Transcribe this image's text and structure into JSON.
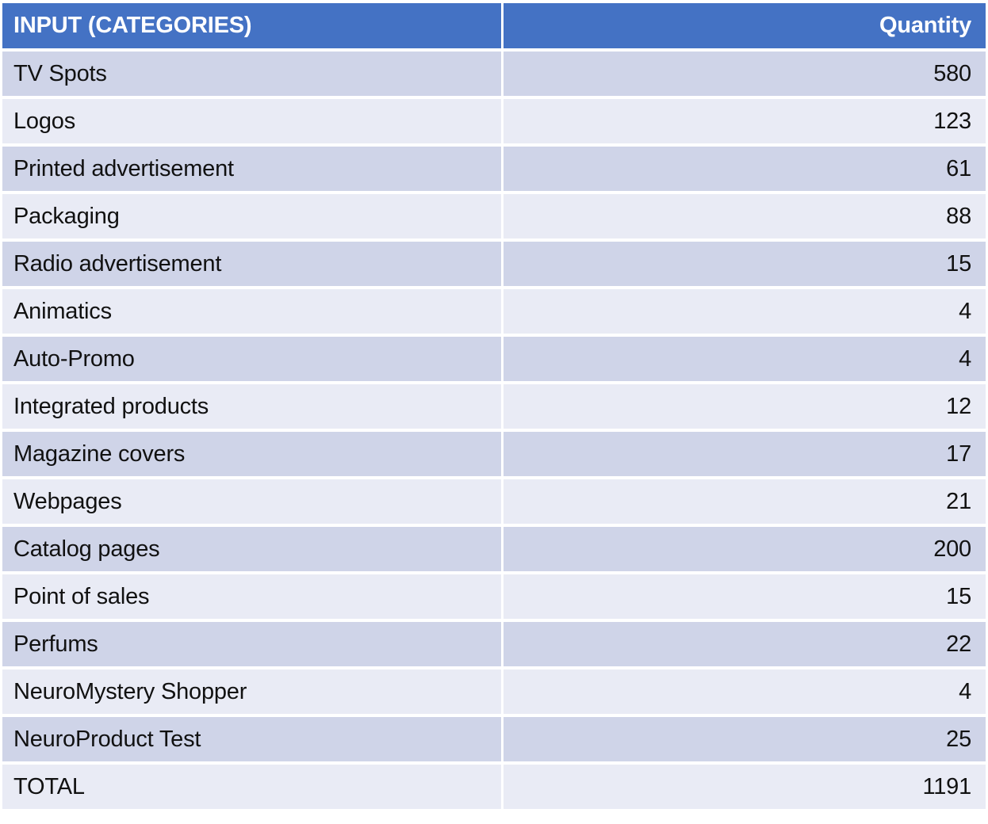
{
  "page": {
    "background": "#FFFFFF"
  },
  "table": {
    "columns": [
      {
        "label": "INPUT (CATEGORIES)"
      },
      {
        "label": "Quantity"
      }
    ],
    "rows": [
      {
        "category": "TV Spots",
        "quantity": 580
      },
      {
        "category": "Logos",
        "quantity": 123
      },
      {
        "category": "Printed advertisement",
        "quantity": 61
      },
      {
        "category": "Packaging",
        "quantity": 88
      },
      {
        "category": "Radio advertisement",
        "quantity": 15
      },
      {
        "category": "Animatics",
        "quantity": 4
      },
      {
        "category": "Auto-Promo",
        "quantity": 4
      },
      {
        "category": "Integrated products",
        "quantity": 12
      },
      {
        "category": "Magazine covers",
        "quantity": 17
      },
      {
        "category": "Webpages",
        "quantity": 21
      },
      {
        "category": "Catalog pages",
        "quantity": 200
      },
      {
        "category": "Point of sales",
        "quantity": 15
      },
      {
        "category": "Perfums",
        "quantity": 22
      },
      {
        "category": "NeuroMystery Shopper",
        "quantity": 4
      },
      {
        "category": "NeuroProduct Test",
        "quantity": 25
      }
    ],
    "total": {
      "category": "TOTAL",
      "quantity": 1191
    },
    "colors": {
      "header_bg": "#4472C4",
      "header_text": "#FFFFFF",
      "band_dark": "#CFD4E8",
      "band_light": "#E9EBF5",
      "row_text": "#111111",
      "divider": "#FFFFFF"
    }
  }
}
